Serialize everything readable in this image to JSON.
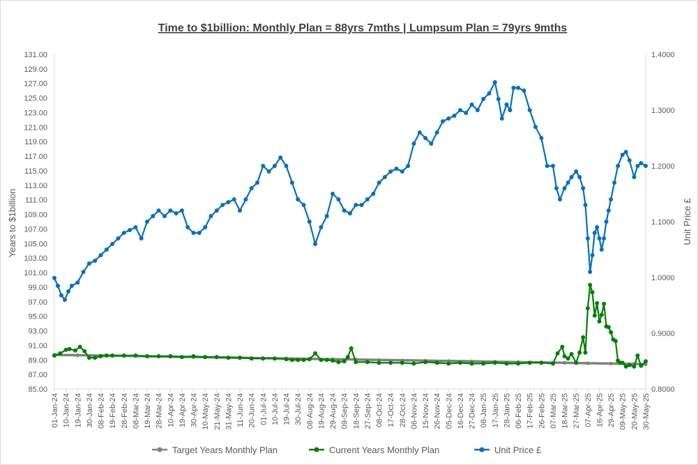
{
  "chart_data": {
    "type": "line",
    "title": "Time to $1billion: Monthly Plan = 88yrs 7mths | Lumpsum Plan = 79yrs 9mths",
    "ylabel": "Years to $1billion",
    "y2label": "Unit Price £",
    "ylim": [
      85,
      131
    ],
    "y2lim": [
      0.8,
      1.4
    ],
    "yticks": [
      "85.00",
      "87.00",
      "89.00",
      "91.00",
      "93.00",
      "95.00",
      "97.00",
      "99.00",
      "101.00",
      "103.00",
      "105.00",
      "107.00",
      "109.00",
      "111.00",
      "113.00",
      "115.00",
      "117.00",
      "119.00",
      "121.00",
      "123.00",
      "125.00",
      "127.00",
      "129.00",
      "131.00"
    ],
    "y2ticks": [
      "0.8000",
      "0.9000",
      "1.0000",
      "1.1000",
      "1.2000",
      "1.3000",
      "1.4000"
    ],
    "xticks": [
      "01-Jan-24",
      "10-Jan-24",
      "19-Jan-24",
      "30-Jan-24",
      "08-Feb-24",
      "19-Feb-24",
      "28-Feb-24",
      "08-Mar-24",
      "19-Mar-24",
      "28-Mar-24",
      "10-Apr-24",
      "19-Apr-24",
      "30-Apr-24",
      "10-May-24",
      "21-May-24",
      "31-May-24",
      "11-Jun-24",
      "20-Jun-24",
      "01-Jul-24",
      "10-Jul-24",
      "19-Jul-24",
      "30-Jul-24",
      "08-Aug-24",
      "19-Aug-24",
      "29-Aug-24",
      "09-Sep-24",
      "18-Sep-24",
      "27-Sep-24",
      "08-Oct-24",
      "17-Oct-24",
      "28-Oct-24",
      "06-Nov-24",
      "15-Nov-24",
      "26-Nov-24",
      "05-Dec-24",
      "16-Dec-24",
      "27-Dec-24",
      "08-Jan-25",
      "17-Jan-25",
      "28-Jan-25",
      "06-Feb-25",
      "17-Feb-25",
      "26-Feb-25",
      "07-Mar-25",
      "18-Mar-25",
      "27-Mar-25",
      "07-Apr-25",
      "16-Apr-25",
      "29-Apr-25",
      "09-May-25",
      "20-May-25",
      "30-May-25"
    ],
    "grid": false,
    "legend_position": "bottom",
    "series": [
      {
        "name": "Target Years Monthly Plan",
        "axis": "left",
        "color": "#808080",
        "x": [
          0,
          2,
          4,
          6,
          8,
          10,
          12,
          14,
          16,
          18,
          20,
          22,
          24,
          26,
          28,
          30,
          32,
          34,
          36,
          38,
          40,
          42,
          44,
          46,
          48,
          50,
          51
        ],
        "y": [
          89.7,
          89.65,
          89.6,
          89.55,
          89.5,
          89.45,
          89.4,
          89.35,
          89.3,
          89.25,
          89.2,
          89.15,
          89.1,
          89.05,
          89.0,
          88.95,
          88.9,
          88.85,
          88.8,
          88.75,
          88.7,
          88.65,
          88.6,
          88.55,
          88.5,
          88.45,
          88.4
        ]
      },
      {
        "name": "Current Years Monthly Plan",
        "axis": "left",
        "color": "#008000",
        "x": [
          0,
          0.5,
          1,
          1.3,
          1.8,
          2.2,
          2.6,
          3,
          3.5,
          4,
          4.5,
          5,
          6,
          7,
          8,
          9,
          10,
          11,
          12,
          13,
          14,
          15,
          16,
          17,
          18,
          19,
          20,
          20.5,
          21,
          21.5,
          22,
          22.5,
          23,
          23.5,
          24,
          24.5,
          25,
          25.3,
          25.6,
          26,
          27,
          28,
          29,
          30,
          31,
          32,
          33,
          34,
          35,
          36,
          37,
          38,
          39,
          40,
          41,
          42,
          43,
          43.4,
          43.8,
          44,
          44.3,
          44.6,
          45,
          45.3,
          45.6,
          45.8,
          46,
          46.2,
          46.4,
          46.6,
          46.8,
          47,
          47.2,
          47.4,
          47.6,
          47.8,
          48,
          48.2,
          48.4,
          48.6,
          48.8,
          49,
          49.3,
          49.6,
          50,
          50.3,
          50.6,
          51
        ],
        "y": [
          89.6,
          89.9,
          90.4,
          90.5,
          90.3,
          90.8,
          90.2,
          89.3,
          89.3,
          89.5,
          89.6,
          89.6,
          89.6,
          89.6,
          89.5,
          89.5,
          89.5,
          89.4,
          89.5,
          89.4,
          89.4,
          89.3,
          89.3,
          89.2,
          89.2,
          89.2,
          89.1,
          89.0,
          89.0,
          89.0,
          89.1,
          89.9,
          89.0,
          89.0,
          88.9,
          88.7,
          88.8,
          89.4,
          90.6,
          88.7,
          88.7,
          88.6,
          88.6,
          88.6,
          88.5,
          88.7,
          88.6,
          88.5,
          88.6,
          88.5,
          88.5,
          88.6,
          88.5,
          88.5,
          88.6,
          88.6,
          88.5,
          89.9,
          90.8,
          89.5,
          89.2,
          89.8,
          88.6,
          90.0,
          92.1,
          90.0,
          96.1,
          99.3,
          98.3,
          95.1,
          96.8,
          94.3,
          95.2,
          96.7,
          93.6,
          93.5,
          92.8,
          91.8,
          91.6,
          88.9,
          88.6,
          88.6,
          88.1,
          88.3,
          88.1,
          89.6,
          88.2,
          88.8
        ]
      },
      {
        "name": "Unit Price £",
        "axis": "right",
        "color": "#0070c0",
        "x": [
          0,
          0.3,
          0.6,
          0.9,
          1.2,
          1.5,
          2,
          2.5,
          3,
          3.5,
          4,
          4.5,
          5,
          5.5,
          6,
          6.5,
          7,
          7.5,
          8,
          8.5,
          9,
          9.5,
          10,
          10.5,
          11,
          11.5,
          12,
          12.5,
          13,
          13.5,
          14,
          14.5,
          15,
          15.5,
          16,
          16.5,
          17,
          17.5,
          18,
          18.5,
          19,
          19.5,
          20,
          20.5,
          21,
          21.5,
          22,
          22.5,
          23,
          23.5,
          24,
          24.5,
          25,
          25.5,
          26,
          26.5,
          27,
          27.5,
          28,
          28.5,
          29,
          29.5,
          30,
          30.5,
          31,
          31.5,
          32,
          32.5,
          33,
          33.5,
          34,
          34.5,
          35,
          35.5,
          36,
          36.5,
          37,
          37.5,
          38,
          38.3,
          38.6,
          39,
          39.3,
          39.6,
          40,
          40.5,
          41,
          41.5,
          42,
          42.5,
          43,
          43.3,
          43.6,
          44,
          44.3,
          44.6,
          45,
          45.3,
          45.6,
          45.8,
          46,
          46.2,
          46.4,
          46.6,
          46.8,
          47,
          47.2,
          47.4,
          47.6,
          47.8,
          48,
          48.3,
          48.6,
          49,
          49.3,
          49.6,
          50,
          50.3,
          50.6,
          51
        ],
        "y": [
          0.999,
          0.985,
          0.968,
          0.96,
          0.975,
          0.985,
          0.991,
          1.01,
          1.025,
          1.03,
          1.04,
          1.05,
          1.06,
          1.07,
          1.08,
          1.085,
          1.09,
          1.07,
          1.1,
          1.11,
          1.12,
          1.11,
          1.12,
          1.115,
          1.12,
          1.09,
          1.08,
          1.08,
          1.09,
          1.11,
          1.12,
          1.13,
          1.135,
          1.14,
          1.12,
          1.14,
          1.16,
          1.17,
          1.2,
          1.19,
          1.2,
          1.215,
          1.2,
          1.17,
          1.14,
          1.13,
          1.1,
          1.06,
          1.09,
          1.11,
          1.15,
          1.14,
          1.12,
          1.115,
          1.13,
          1.13,
          1.14,
          1.15,
          1.17,
          1.18,
          1.19,
          1.195,
          1.19,
          1.2,
          1.24,
          1.26,
          1.25,
          1.24,
          1.26,
          1.28,
          1.285,
          1.29,
          1.3,
          1.295,
          1.31,
          1.3,
          1.32,
          1.33,
          1.35,
          1.32,
          1.285,
          1.31,
          1.3,
          1.34,
          1.34,
          1.335,
          1.3,
          1.27,
          1.25,
          1.2,
          1.2,
          1.16,
          1.14,
          1.16,
          1.17,
          1.18,
          1.19,
          1.18,
          1.16,
          1.13,
          1.07,
          1.01,
          1.04,
          1.08,
          1.09,
          1.07,
          1.05,
          1.07,
          1.1,
          1.12,
          1.14,
          1.17,
          1.2,
          1.22,
          1.225,
          1.21,
          1.18,
          1.2,
          1.205,
          1.2
        ]
      }
    ]
  }
}
